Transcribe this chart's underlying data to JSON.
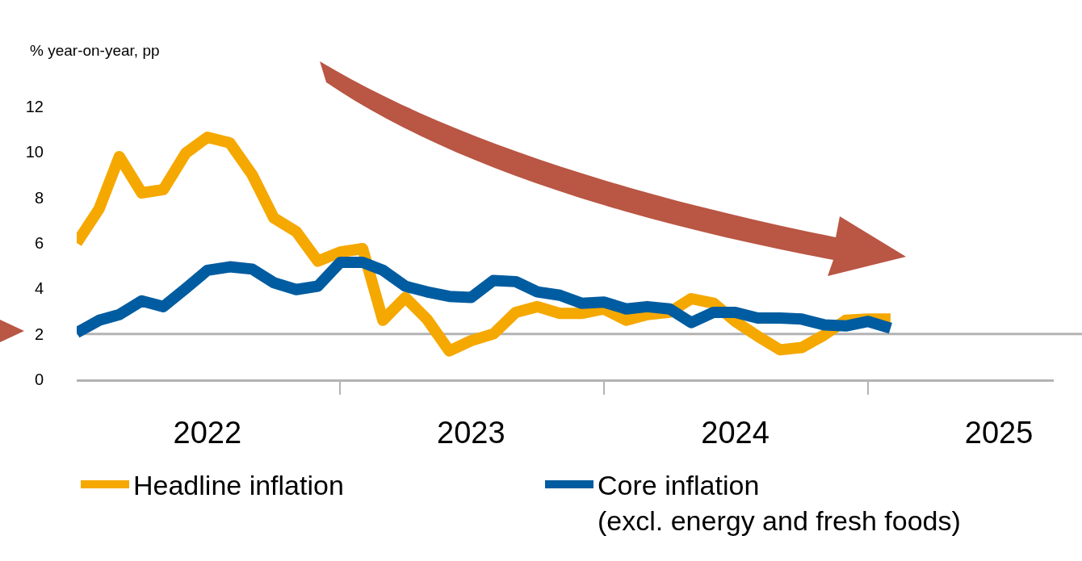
{
  "chart_data": {
    "type": "line",
    "ylabel": "% year-on-year, pp",
    "x": [
      "2022-01",
      "2022-02",
      "2022-03",
      "2022-04",
      "2022-05",
      "2022-06",
      "2022-07",
      "2022-08",
      "2022-09",
      "2022-10",
      "2022-11",
      "2022-12",
      "2023-01",
      "2023-02",
      "2023-03",
      "2023-04",
      "2023-05",
      "2023-06",
      "2023-07",
      "2023-08",
      "2023-09",
      "2023-10",
      "2023-11",
      "2023-12",
      "2024-01",
      "2024-02",
      "2024-03",
      "2024-04",
      "2024-05",
      "2024-06",
      "2024-07",
      "2024-08",
      "2024-09",
      "2024-10",
      "2024-11",
      "2024-12",
      "2025-01",
      "2025-02"
    ],
    "series": [
      {
        "name": "Headline inflation",
        "color": "#f5a800",
        "values": [
          6.0,
          7.5,
          9.8,
          8.2,
          8.35,
          9.95,
          10.65,
          10.4,
          9.0,
          7.1,
          6.5,
          5.2,
          5.6,
          5.75,
          2.6,
          3.6,
          2.65,
          1.25,
          1.7,
          2.0,
          2.95,
          3.2,
          2.9,
          2.9,
          3.1,
          2.6,
          2.85,
          2.95,
          3.55,
          3.35,
          2.55,
          1.9,
          1.3,
          1.4,
          1.95,
          2.6,
          2.65,
          2.65
        ]
      },
      {
        "name": "Core inflation\n(excl. energy and fresh foods)",
        "color": "#005ca0",
        "values": [
          2.05,
          2.6,
          2.85,
          3.45,
          3.2,
          4.0,
          4.8,
          4.95,
          4.85,
          4.25,
          3.95,
          4.1,
          5.15,
          5.15,
          4.8,
          4.1,
          3.85,
          3.65,
          3.6,
          4.35,
          4.3,
          3.85,
          3.7,
          3.35,
          3.4,
          3.1,
          3.2,
          3.1,
          2.5,
          2.95,
          2.95,
          2.7,
          2.7,
          2.65,
          2.4,
          2.35,
          2.55,
          2.25
        ]
      }
    ],
    "xlim": [
      "2022-01-01",
      "2025-09-15"
    ],
    "xticks": [
      {
        "value": "2022-07-01",
        "label": "2022"
      },
      {
        "value": "2023-01-01",
        "label": null
      },
      {
        "value": "2023-07-01",
        "label": "2023"
      },
      {
        "value": "2024-01-01",
        "label": null
      },
      {
        "value": "2024-07-01",
        "label": "2024"
      },
      {
        "value": "2025-01-01",
        "label": null
      },
      {
        "value": "2025-07-01",
        "label": "2025"
      }
    ],
    "ylim": [
      0,
      12
    ],
    "yticks": [
      0,
      2,
      4,
      6,
      8,
      10,
      12
    ],
    "ref_lines": [
      {
        "axis": "y",
        "value": 2,
        "label": null,
        "color": "#b3b3b3"
      }
    ],
    "grid": false,
    "legend": "bottom left",
    "marker": "none",
    "line_style": "solid"
  }
}
